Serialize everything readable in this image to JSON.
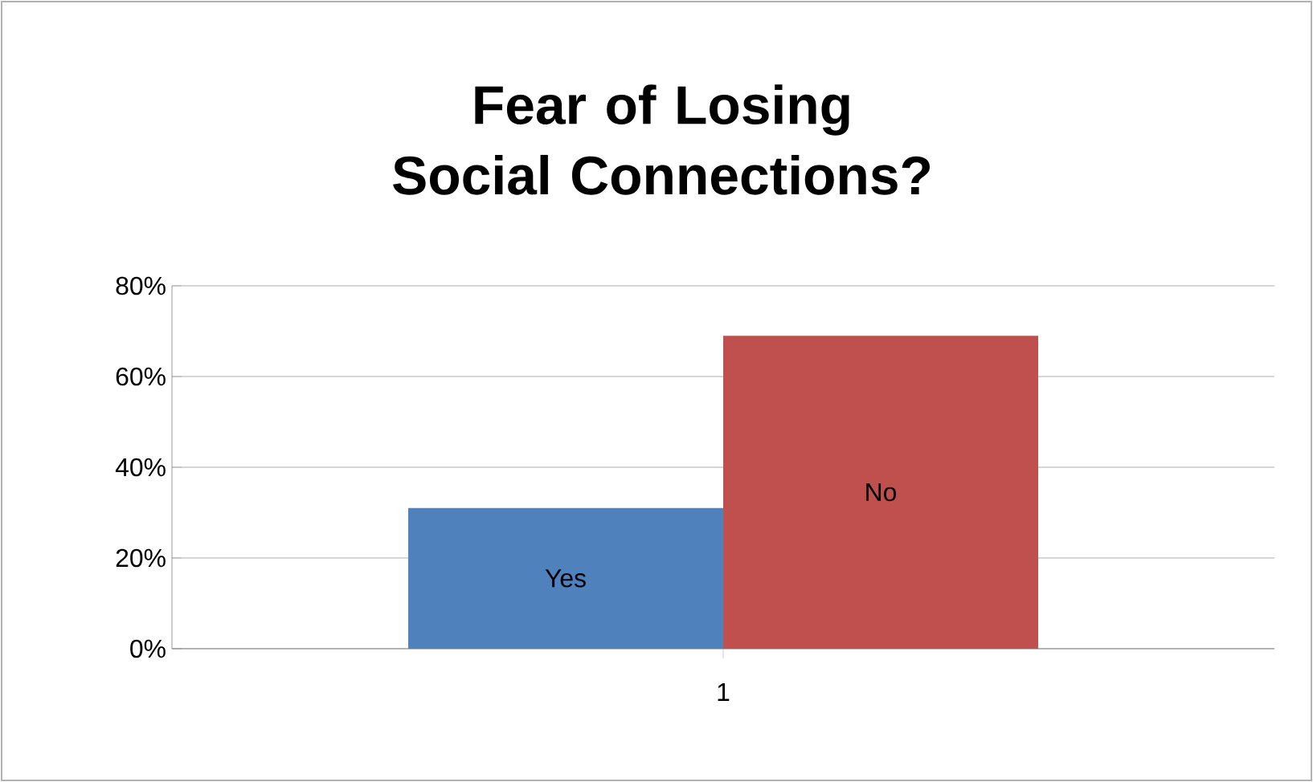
{
  "chart_data": {
    "type": "bar",
    "title": "Fear of Losing Social Connections?",
    "categories": [
      "1"
    ],
    "series": [
      {
        "name": "Yes",
        "color": "#4f81bd",
        "values": [
          31
        ]
      },
      {
        "name": "No",
        "color": "#c0504d",
        "values": [
          69
        ]
      }
    ],
    "ylim": [
      0,
      80
    ],
    "yticks": [
      {
        "value": 0,
        "label": "0%"
      },
      {
        "value": 20,
        "label": "20%"
      },
      {
        "value": 40,
        "label": "40%"
      },
      {
        "value": 60,
        "label": "60%"
      },
      {
        "value": 80,
        "label": "80%"
      }
    ],
    "grid": "y",
    "legend": false
  }
}
